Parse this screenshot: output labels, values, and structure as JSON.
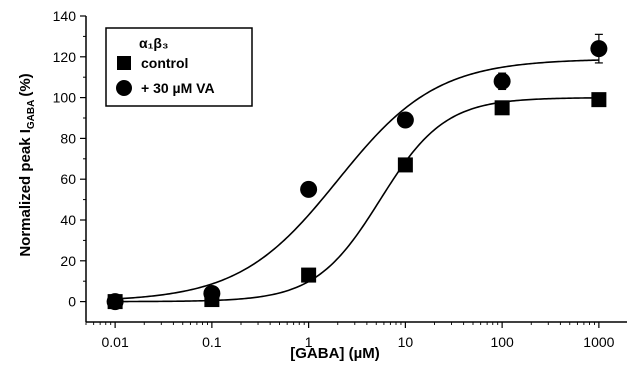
{
  "chart_data": {
    "type": "scatter",
    "xlabel": "[GABA] (µM)",
    "ylabel": "Normalized peak I",
    "ylabel_sub": "GABA",
    "ylabel_unit": "(%)",
    "xscale": "log",
    "xlim": [
      0.005,
      2000
    ],
    "ylim": [
      -10,
      140
    ],
    "xticks": [
      0.01,
      0.1,
      1,
      10,
      100,
      1000
    ],
    "xtick_labels": [
      "0.01",
      "0.1",
      "1",
      "10",
      "100",
      "1000"
    ],
    "yticks": [
      0,
      20,
      40,
      60,
      80,
      100,
      120,
      140
    ],
    "ytick_labels": [
      "0",
      "20",
      "40",
      "60",
      "80",
      "100",
      "120",
      "140"
    ],
    "grid": false,
    "legend_position": "top-left",
    "legend_title": "α₁β₃",
    "series": [
      {
        "name": "control",
        "marker": "square",
        "x": [
          0.01,
          0.1,
          1,
          10,
          100,
          1000
        ],
        "y": [
          0,
          1,
          13,
          67,
          95,
          99
        ],
        "err": [
          0,
          0,
          1,
          2,
          2,
          0
        ],
        "fit": {
          "bottom": 0,
          "top": 100,
          "ec50": 5.5,
          "hill": 1.3
        }
      },
      {
        "name": "+ 30 µM VA",
        "marker": "circle",
        "x": [
          0.01,
          0.1,
          1,
          10,
          100,
          1000
        ],
        "y": [
          0,
          4,
          55,
          89,
          108,
          124
        ],
        "err": [
          0,
          0,
          1,
          2,
          4,
          7
        ],
        "fit": {
          "bottom": 0,
          "top": 119,
          "ec50": 2.0,
          "hill": 0.85
        }
      }
    ]
  }
}
